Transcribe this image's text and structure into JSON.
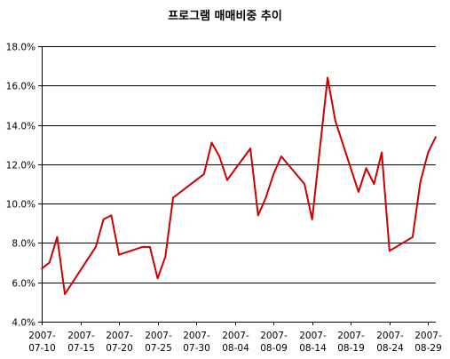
{
  "chart_data": {
    "type": "line",
    "title": "프로그램 매매비중 추이",
    "xlabel": "",
    "ylabel": "",
    "ylim": [
      4.0,
      18.0
    ],
    "y_ticks": [
      "4.0%",
      "6.0%",
      "8.0%",
      "10.0%",
      "12.0%",
      "14.0%",
      "16.0%",
      "18.0%"
    ],
    "x_tick_labels": [
      {
        "line1": "2007-",
        "line2": "07-10",
        "date": "2007-07-10"
      },
      {
        "line1": "2007-",
        "line2": "07-15",
        "date": "2007-07-15"
      },
      {
        "line1": "2007-",
        "line2": "07-20",
        "date": "2007-07-20"
      },
      {
        "line1": "2007-",
        "line2": "07-25",
        "date": "2007-07-25"
      },
      {
        "line1": "2007-",
        "line2": "07-30",
        "date": "2007-07-30"
      },
      {
        "line1": "2007-",
        "line2": "08-04",
        "date": "2007-08-04"
      },
      {
        "line1": "2007-",
        "line2": "08-09",
        "date": "2007-08-09"
      },
      {
        "line1": "2007-",
        "line2": "08-14",
        "date": "2007-08-14"
      },
      {
        "line1": "2007-",
        "line2": "08-19",
        "date": "2007-08-19"
      },
      {
        "line1": "2007-",
        "line2": "08-24",
        "date": "2007-08-24"
      },
      {
        "line1": "2007-",
        "line2": "08-29",
        "date": "2007-08-29"
      }
    ],
    "x_range": [
      "2007-07-10",
      "2007-08-30"
    ],
    "grid": true,
    "line_color": "#cc0000",
    "series": [
      {
        "name": "",
        "points": [
          {
            "x": "2007-07-10",
            "y": 6.7
          },
          {
            "x": "2007-07-11",
            "y": 7.0
          },
          {
            "x": "2007-07-12",
            "y": 8.3
          },
          {
            "x": "2007-07-13",
            "y": 5.4
          },
          {
            "x": "2007-07-16",
            "y": 7.2
          },
          {
            "x": "2007-07-17",
            "y": 7.8
          },
          {
            "x": "2007-07-18",
            "y": 9.2
          },
          {
            "x": "2007-07-19",
            "y": 9.4
          },
          {
            "x": "2007-07-20",
            "y": 7.4
          },
          {
            "x": "2007-07-23",
            "y": 7.8
          },
          {
            "x": "2007-07-24",
            "y": 7.8
          },
          {
            "x": "2007-07-25",
            "y": 6.2
          },
          {
            "x": "2007-07-26",
            "y": 7.3
          },
          {
            "x": "2007-07-27",
            "y": 10.3
          },
          {
            "x": "2007-07-30",
            "y": 11.2
          },
          {
            "x": "2007-07-31",
            "y": 11.5
          },
          {
            "x": "2007-08-01",
            "y": 13.1
          },
          {
            "x": "2007-08-02",
            "y": 12.4
          },
          {
            "x": "2007-08-03",
            "y": 11.2
          },
          {
            "x": "2007-08-06",
            "y": 12.8
          },
          {
            "x": "2007-08-07",
            "y": 9.4
          },
          {
            "x": "2007-08-08",
            "y": 10.3
          },
          {
            "x": "2007-08-09",
            "y": 11.5
          },
          {
            "x": "2007-08-10",
            "y": 12.4
          },
          {
            "x": "2007-08-13",
            "y": 11.0
          },
          {
            "x": "2007-08-14",
            "y": 9.2
          },
          {
            "x": "2007-08-16",
            "y": 16.4
          },
          {
            "x": "2007-08-17",
            "y": 14.2
          },
          {
            "x": "2007-08-20",
            "y": 10.6
          },
          {
            "x": "2007-08-21",
            "y": 11.8
          },
          {
            "x": "2007-08-22",
            "y": 11.0
          },
          {
            "x": "2007-08-23",
            "y": 12.6
          },
          {
            "x": "2007-08-24",
            "y": 7.6
          },
          {
            "x": "2007-08-27",
            "y": 8.3
          },
          {
            "x": "2007-08-28",
            "y": 11.1
          },
          {
            "x": "2007-08-29",
            "y": 12.6
          },
          {
            "x": "2007-08-30",
            "y": 13.4
          }
        ]
      }
    ]
  }
}
